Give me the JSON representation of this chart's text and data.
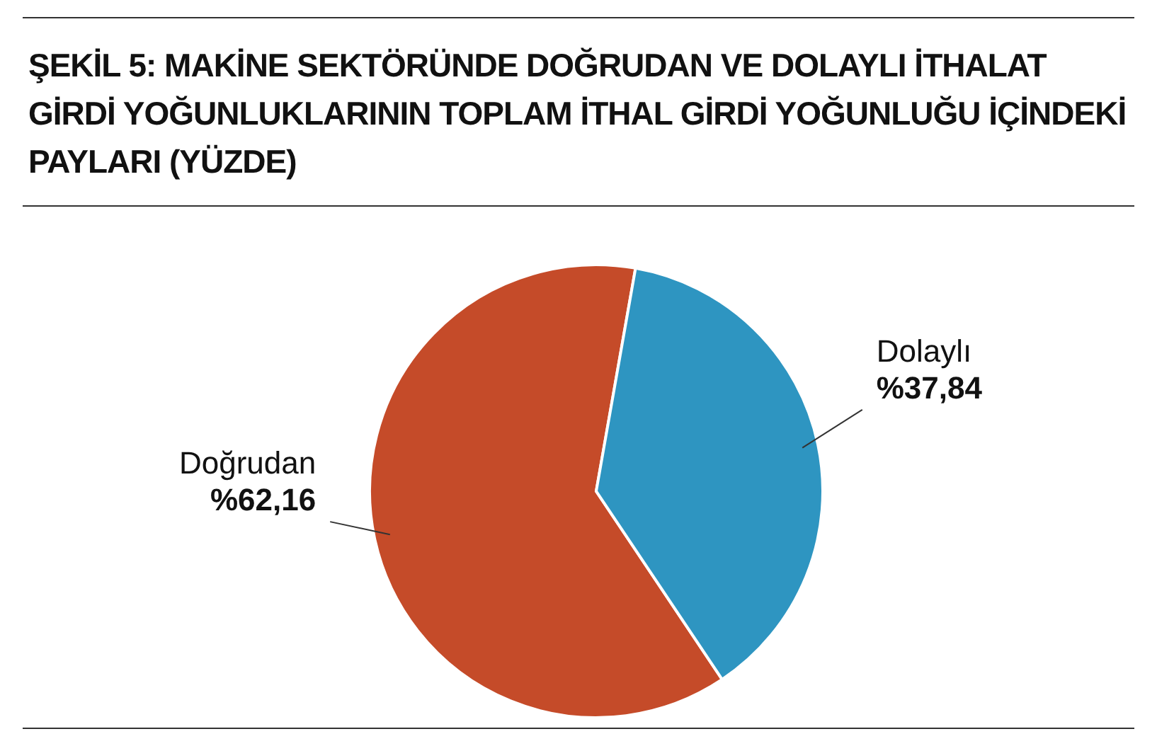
{
  "chart_data": {
    "type": "pie",
    "title": "ŞEKİL 5: MAKİNE SEKTÖRÜNDE DOĞRUDAN VE DOLAYLI İTHALAT GİRDİ YOĞUNLUKLARININ TOPLAM İTHAL GİRDİ YOĞUNLUĞU İÇİNDEKİ PAYLARI (YÜZDE)",
    "categories": [
      "Doğrudan",
      "Dolaylı"
    ],
    "values": [
      62.16,
      37.84
    ],
    "colors": [
      "#c54b29",
      "#2e95c1"
    ],
    "value_labels": [
      "%62,16",
      "%37,84"
    ]
  }
}
